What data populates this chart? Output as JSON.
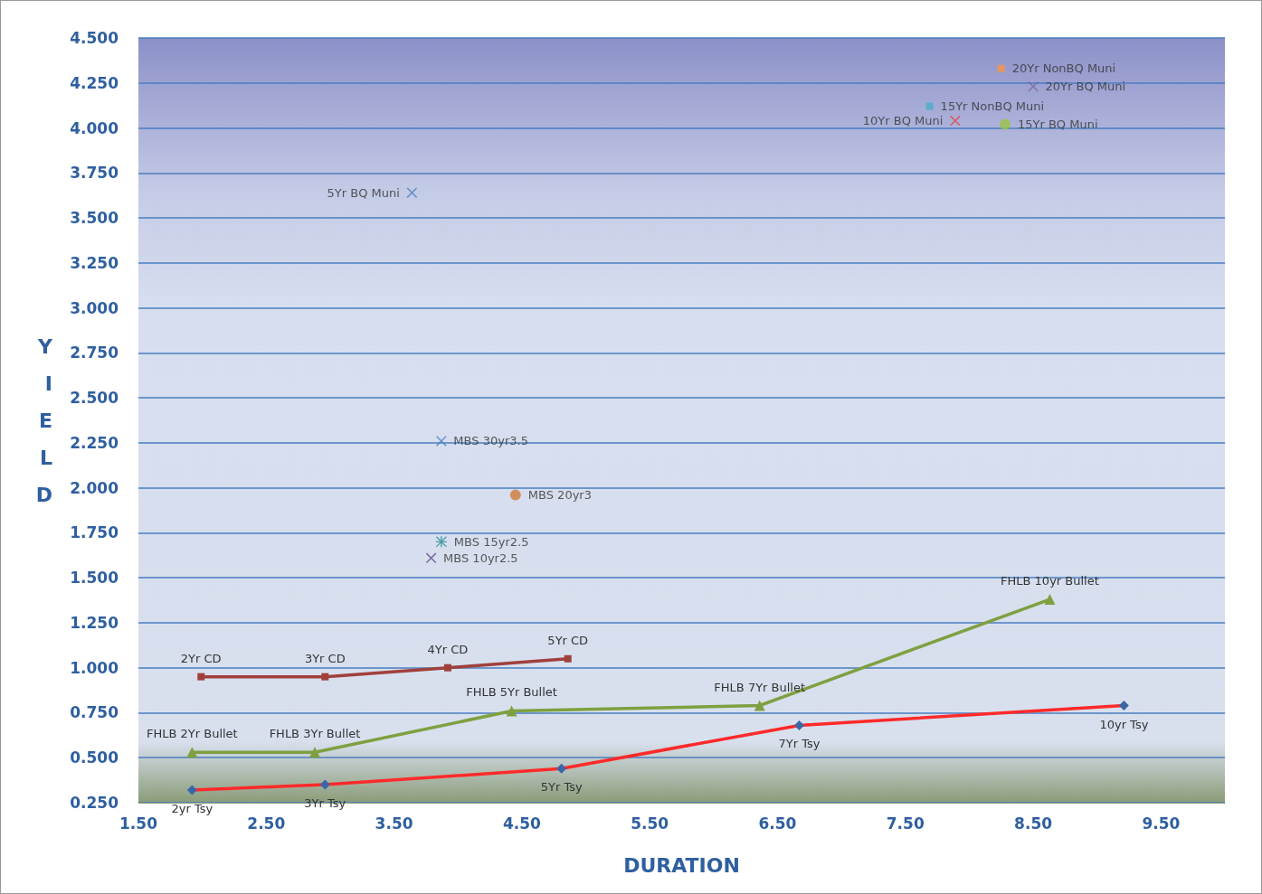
{
  "chart_data": {
    "type": "line",
    "xlabel": "DURATION",
    "ylabel": "YIELD",
    "xlim": [
      1.5,
      10
    ],
    "xticks": [
      {
        "value": 1.5,
        "label": "1.50"
      },
      {
        "value": 2.5,
        "label": "2.50"
      },
      {
        "value": 3.5,
        "label": "3.50"
      },
      {
        "value": 4.5,
        "label": "4.50"
      },
      {
        "value": 5.5,
        "label": "5.50"
      },
      {
        "value": 6.5,
        "label": "6.50"
      },
      {
        "value": 7.5,
        "label": "7.50"
      },
      {
        "value": 8.5,
        "label": "8.50"
      },
      {
        "value": 9.5,
        "label": "9.50"
      }
    ],
    "ylim": [
      0.25,
      4.5
    ],
    "yticks": [
      {
        "value": 0.25,
        "label": "0.250"
      },
      {
        "value": 0.5,
        "label": "0.500"
      },
      {
        "value": 0.75,
        "label": "0.750"
      },
      {
        "value": 1,
        "label": "1.000"
      },
      {
        "value": 1.25,
        "label": "1.250"
      },
      {
        "value": 1.5,
        "label": "1.500"
      },
      {
        "value": 1.75,
        "label": "1.750"
      },
      {
        "value": 2,
        "label": "2.000"
      },
      {
        "value": 2.25,
        "label": "2.250"
      },
      {
        "value": 2.5,
        "label": "2.500"
      },
      {
        "value": 2.75,
        "label": "2.750"
      },
      {
        "value": 3,
        "label": "3.000"
      },
      {
        "value": 3.25,
        "label": "3.250"
      },
      {
        "value": 3.5,
        "label": "3.500"
      },
      {
        "value": 3.75,
        "label": "3.750"
      },
      {
        "value": 4,
        "label": "4.000"
      },
      {
        "value": 4.25,
        "label": "4.250"
      },
      {
        "value": 4.5,
        "label": "4.500"
      }
    ],
    "grid": "y",
    "series": [
      {
        "color": "#ff2a2a",
        "marker": "diamond",
        "colors": [
          "#3a66a8",
          "#3a66a8",
          "#3a66a8",
          "#3a66a8",
          "#3a66a8"
        ],
        "x": [
          1.92,
          2.96,
          4.81,
          6.67,
          9.21
        ],
        "values": [
          0.32,
          0.35,
          0.44,
          0.68,
          0.79
        ]
      },
      {
        "color": "#a0403c",
        "marker": "square",
        "x": [
          1.99,
          2.96,
          3.92,
          4.86
        ],
        "values": [
          0.95,
          0.95,
          1.0,
          1.05
        ]
      },
      {
        "color": "#7fa040",
        "marker": "triangle",
        "x": [
          1.92,
          2.88,
          4.42,
          6.36,
          8.63
        ],
        "values": [
          0.53,
          0.53,
          0.76,
          0.79,
          1.38
        ]
      },
      {
        "type": "scatter",
        "name": "5Yr BQ Muni",
        "color": "#4f81bd",
        "marker": "cross",
        "x": [
          3.64
        ],
        "values": [
          3.64
        ]
      },
      {
        "type": "scatter",
        "name": "MBS 30yr3.5",
        "color": "#4f81bd",
        "marker": "cross",
        "x": [
          3.87
        ],
        "values": [
          2.26
        ]
      },
      {
        "type": "scatter",
        "name": "MBS 20yr3",
        "color": "#d07a3a",
        "marker": "circle",
        "x": [
          4.45
        ],
        "values": [
          1.96
        ]
      },
      {
        "type": "scatter",
        "name": "MBS 15yr2.5",
        "color": "#2a8c9a",
        "marker": "star",
        "x": [
          3.87
        ],
        "values": [
          1.7
        ]
      },
      {
        "type": "scatter",
        "name": "MBS 10yr2.5",
        "color": "#6a4c8c",
        "marker": "cross",
        "x": [
          3.79
        ],
        "values": [
          1.61
        ]
      },
      {
        "type": "scatter",
        "name": "10Yr BQ Muni",
        "color": "#e04848",
        "marker": "cross",
        "x": [
          7.89
        ],
        "values": [
          4.04
        ]
      },
      {
        "type": "scatter",
        "name": "15Yr BQ Muni",
        "color": "#9bc444",
        "marker": "circle",
        "x": [
          8.28
        ],
        "values": [
          4.02
        ]
      },
      {
        "type": "scatter",
        "name": "15Yr NonBQ Muni",
        "color": "#4bacc6",
        "marker": "square",
        "x": [
          7.69
        ],
        "values": [
          4.12
        ]
      },
      {
        "type": "scatter",
        "name": "20Yr BQ Muni",
        "color": "#8064a2",
        "marker": "cross",
        "x": [
          8.5
        ],
        "values": [
          4.23
        ]
      },
      {
        "type": "scatter",
        "name": "20Yr NonBQ Muni",
        "color": "#f79646",
        "marker": "square",
        "x": [
          8.25
        ],
        "values": [
          4.33
        ]
      }
    ],
    "annotations": [
      {
        "text": "2yr Tsy",
        "x": 1.92,
        "y": 0.32
      },
      {
        "text": "3Yr Tsy",
        "x": 2.96,
        "y": 0.35
      },
      {
        "text": "5Yr Tsy",
        "x": 4.81,
        "y": 0.44
      },
      {
        "text": "7Yr Tsy",
        "x": 6.67,
        "y": 0.68
      },
      {
        "text": "10yr Tsy",
        "x": 9.21,
        "y": 0.79
      },
      {
        "text": "2Yr CD",
        "x": 1.99,
        "y": 0.95
      },
      {
        "text": "3Yr CD",
        "x": 2.96,
        "y": 0.95
      },
      {
        "text": "4Yr CD",
        "x": 3.92,
        "y": 1.0
      },
      {
        "text": "5Yr CD",
        "x": 4.86,
        "y": 1.05
      },
      {
        "text": "FHLB 2Yr Bullet",
        "x": 1.92,
        "y": 0.53
      },
      {
        "text": "FHLB 3Yr Bullet",
        "x": 2.88,
        "y": 0.53
      },
      {
        "text": "FHLB 5Yr Bullet",
        "x": 4.42,
        "y": 0.76
      },
      {
        "text": "FHLB 7Yr Bullet",
        "x": 6.36,
        "y": 0.79
      },
      {
        "text": "FHLB 10yr Bullet",
        "x": 8.63,
        "y": 1.38
      }
    ]
  }
}
